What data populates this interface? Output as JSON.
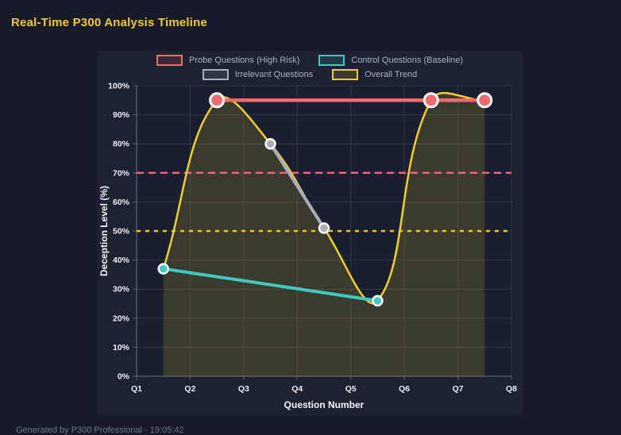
{
  "page": {
    "title": "Real-Time P300 Analysis Timeline",
    "footer": "Generated by P300 Professional - 19:05:42"
  },
  "colors": {
    "background": "#161a29",
    "panel": "#1d2233",
    "plot_bg": "#191e30",
    "grid": "rgba(255,255,255,0.10)",
    "axis_border": "rgba(255,255,255,0.28)",
    "tick_mark": "rgba(255,255,255,0.25)",
    "tick_text": "#edeff5",
    "axis_title": "#f3f5fa",
    "legend_text": "#a9b0c2",
    "title": "#f3c832",
    "footer_text": "#6f7689",
    "point_border": "#ffffff"
  },
  "chart_data": {
    "type": "line",
    "title": "Real-Time P300 Analysis Timeline",
    "xlabel": "Question Number",
    "ylabel": "Deception Level (%)",
    "x_range": [
      1,
      8
    ],
    "x_ticks": [
      "Q1",
      "Q2",
      "Q3",
      "Q4",
      "Q5",
      "Q6",
      "Q7",
      "Q8"
    ],
    "ylim": [
      0,
      100
    ],
    "y_tick_step": 10,
    "y_tick_suffix": "%",
    "grid": true,
    "legend_position": "top",
    "series": [
      {
        "name": "Probe Questions (High Risk)",
        "color": "#f26b6b",
        "line_width": 4.5,
        "point_radius": 8.5,
        "smooth": false,
        "points": [
          [
            2.5,
            95
          ],
          [
            6.5,
            95
          ],
          [
            7.5,
            95
          ]
        ]
      },
      {
        "name": "Control Questions (Baseline)",
        "color": "#3fc9c0",
        "line_width": 4,
        "point_radius": 6,
        "smooth": false,
        "points": [
          [
            1.5,
            37
          ],
          [
            5.5,
            26
          ]
        ]
      },
      {
        "name": "Irrelevant Questions",
        "color": "#a9aeb8",
        "line_width": 4,
        "point_radius": 6,
        "smooth": false,
        "points": [
          [
            3.5,
            80
          ],
          [
            4.5,
            51
          ]
        ]
      },
      {
        "name": "Overall Trend",
        "color": "#f2ce2c",
        "line_width": 2.5,
        "point_radius": 0,
        "smooth": true,
        "tension": 0.4,
        "fill": true,
        "fill_opacity": 0.16,
        "points": [
          [
            1.5,
            37
          ],
          [
            2.5,
            95
          ],
          [
            3.5,
            80
          ],
          [
            4.5,
            51
          ],
          [
            5.5,
            26
          ],
          [
            6.5,
            95
          ],
          [
            7.5,
            95
          ]
        ]
      }
    ],
    "thresholds": [
      {
        "name": "high-risk-threshold",
        "value": 70,
        "color": "#f0607a",
        "dash": [
          9,
          6
        ],
        "width": 2.5
      },
      {
        "name": "baseline-threshold",
        "value": 50,
        "color": "#efc41f",
        "dash": [
          5,
          6
        ],
        "width": 2.5
      }
    ]
  }
}
